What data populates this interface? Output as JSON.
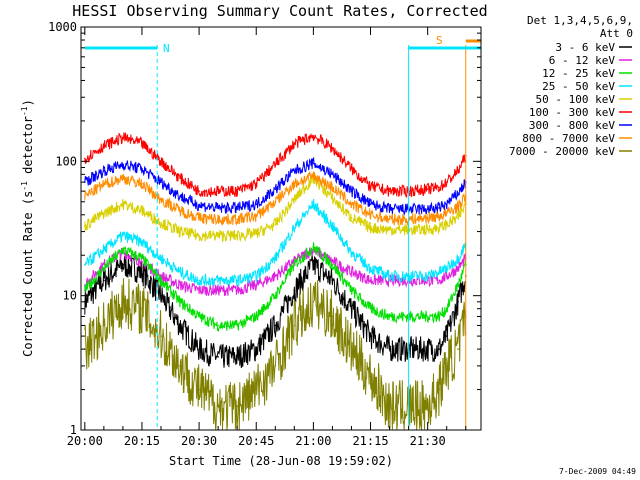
{
  "chart_data": {
    "type": "line",
    "title": "HESSI Observing Summary Count Rates, Corrected",
    "ylabel": "Corrected Count Rate (s⁻¹ detector⁻¹)",
    "ylabel_main": "Corrected Count Rate (s",
    "ylabel_mid": " detector",
    "ylabel_end": ")",
    "ylabel_sup": "-1",
    "xlabel": "Start Time (28-Jun-08 19:59:02)",
    "y_scale": "log",
    "ylim": [
      1,
      1000
    ],
    "xlim_minutes_after_2000": [
      -1,
      104
    ],
    "x_tick_labels": [
      "20:00",
      "20:15",
      "20:30",
      "20:45",
      "21:00",
      "21:15",
      "21:30"
    ],
    "x_tick_minutes": [
      0,
      15,
      30,
      45,
      60,
      75,
      90
    ],
    "y_tick_labels": [
      "1",
      "10",
      "100",
      "1000"
    ],
    "y_tick_values": [
      1,
      10,
      100,
      1000
    ],
    "legend_header": [
      "Det 1,3,4,5,6,9,",
      "Att 0"
    ],
    "legend_placement": "right, outside plot",
    "flags": [
      {
        "label": "N",
        "color": "#00e5ff",
        "start_min": 0,
        "end_min": 19
      },
      {
        "label": "N",
        "color": "#00e5ff",
        "start_min": 85,
        "end_min": 104
      },
      {
        "label": "S",
        "color": "#ff8c00",
        "start_min": 100,
        "end_min": 104
      }
    ],
    "flag_label_N": "N",
    "flag_label_S": "S",
    "vertical_markers": [
      {
        "minute": 19,
        "color": "#00e5ff",
        "style": "dashed"
      },
      {
        "minute": 85,
        "color": "#00e5ff",
        "style": "solid"
      },
      {
        "minute": 100,
        "color": "#ff8c00",
        "style": "solid"
      },
      {
        "minute": 104,
        "color": "#00e5ff",
        "style": "dashed"
      }
    ],
    "series": [
      {
        "name": "3 - 6 keV",
        "color": "#000000",
        "x": [
          0,
          5,
          10,
          15,
          20,
          25,
          30,
          35,
          40,
          45,
          50,
          55,
          60,
          65,
          70,
          75,
          80,
          85,
          90,
          93,
          95,
          98,
          100
        ],
        "y": [
          9,
          13,
          17,
          15,
          10,
          6,
          4,
          3.5,
          3.5,
          4,
          6,
          11,
          17,
          13,
          8,
          5,
          4,
          4,
          4,
          4,
          5,
          9,
          14
        ]
      },
      {
        "name": "6 - 12 keV",
        "color": "#e020e0",
        "x": [
          0,
          5,
          10,
          15,
          20,
          25,
          30,
          35,
          40,
          45,
          50,
          55,
          60,
          65,
          70,
          75,
          80,
          85,
          90,
          93,
          95,
          98,
          100
        ],
        "y": [
          12,
          17,
          21,
          18,
          14,
          12,
          11,
          11,
          11,
          12,
          14,
          18,
          22,
          18,
          15,
          13,
          13,
          13,
          13,
          13,
          14,
          16,
          19
        ]
      },
      {
        "name": "12 - 25 keV",
        "color": "#00e000",
        "x": [
          0,
          5,
          10,
          15,
          20,
          25,
          30,
          35,
          40,
          45,
          50,
          55,
          60,
          65,
          70,
          75,
          80,
          85,
          90,
          93,
          95,
          98,
          100
        ],
        "y": [
          11,
          16,
          22,
          19,
          13,
          9,
          7,
          6,
          6,
          7,
          10,
          17,
          23,
          17,
          11,
          8,
          7,
          7,
          7,
          7,
          8,
          12,
          17
        ]
      },
      {
        "name": "25 - 50 keV",
        "color": "#00e5ff",
        "x": [
          0,
          5,
          10,
          15,
          20,
          25,
          30,
          35,
          40,
          45,
          50,
          55,
          60,
          65,
          70,
          75,
          80,
          85,
          90,
          93,
          95,
          98,
          100
        ],
        "y": [
          17,
          22,
          28,
          25,
          19,
          15,
          13,
          13,
          13,
          14,
          19,
          32,
          48,
          33,
          21,
          16,
          14,
          14,
          14,
          15,
          16,
          19,
          24
        ]
      },
      {
        "name": "50 - 100 keV",
        "color": "#d8d000",
        "x": [
          0,
          5,
          10,
          15,
          20,
          25,
          30,
          35,
          40,
          45,
          50,
          55,
          60,
          65,
          70,
          75,
          80,
          85,
          90,
          93,
          95,
          98,
          100
        ],
        "y": [
          33,
          41,
          48,
          43,
          35,
          30,
          28,
          28,
          28,
          29,
          34,
          52,
          75,
          53,
          38,
          32,
          31,
          31,
          31,
          32,
          34,
          38,
          48
        ]
      },
      {
        "name": "100 - 300 keV",
        "color": "#ff0000",
        "x": [
          0,
          5,
          10,
          15,
          20,
          25,
          30,
          35,
          40,
          45,
          50,
          55,
          60,
          65,
          70,
          75,
          80,
          85,
          90,
          93,
          95,
          98,
          100
        ],
        "y": [
          105,
          130,
          150,
          135,
          100,
          75,
          60,
          60,
          60,
          68,
          95,
          135,
          155,
          125,
          88,
          65,
          60,
          60,
          62,
          64,
          70,
          85,
          110
        ]
      },
      {
        "name": "300 - 800 keV",
        "color": "#0000ff",
        "x": [
          0,
          5,
          10,
          15,
          20,
          25,
          30,
          35,
          40,
          45,
          50,
          55,
          60,
          65,
          70,
          75,
          80,
          85,
          90,
          93,
          95,
          98,
          100
        ],
        "y": [
          70,
          85,
          95,
          88,
          70,
          55,
          47,
          45,
          45,
          48,
          62,
          85,
          97,
          80,
          60,
          48,
          44,
          44,
          44,
          45,
          48,
          58,
          70
        ]
      },
      {
        "name": "800 - 7000 keV",
        "color": "#ff8c00",
        "x": [
          0,
          5,
          10,
          15,
          20,
          25,
          30,
          35,
          40,
          45,
          50,
          55,
          60,
          65,
          70,
          75,
          80,
          85,
          90,
          93,
          95,
          98,
          100
        ],
        "y": [
          55,
          67,
          75,
          68,
          52,
          43,
          38,
          37,
          37,
          39,
          50,
          68,
          78,
          64,
          48,
          40,
          37,
          37,
          38,
          39,
          41,
          46,
          55
        ]
      },
      {
        "name": "7000 - 20000 keV",
        "color": "#808000",
        "x": [
          0,
          5,
          10,
          15,
          20,
          25,
          30,
          35,
          40,
          45,
          50,
          55,
          60,
          65,
          70,
          75,
          80,
          85,
          90,
          93,
          95,
          98,
          100
        ],
        "y": [
          4,
          6,
          9,
          8,
          5,
          3,
          2,
          1.5,
          1.5,
          2,
          3,
          6,
          9,
          7,
          4,
          2.5,
          1.5,
          1.5,
          1.5,
          2,
          3,
          4,
          7
        ]
      }
    ],
    "timestamp": "7-Dec-2009 04:49",
    "grid": false
  }
}
